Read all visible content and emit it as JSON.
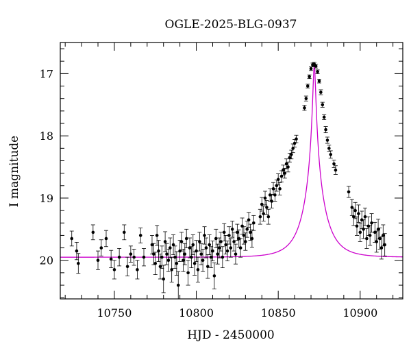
{
  "chart_data": {
    "type": "scatter",
    "title": "OGLE-2025-BLG-0937",
    "xlabel": "HJD - 2450000",
    "ylabel": "I magnitude",
    "xlim": [
      10717,
      10926
    ],
    "ylim": [
      20.62,
      16.5
    ],
    "y_inverted": true,
    "grid": false,
    "x_ticks": [
      10750,
      10800,
      10850,
      10900
    ],
    "y_ticks": [
      17,
      18,
      19,
      20
    ],
    "x_minor_step": 10,
    "y_minor_step": 0.2,
    "colors": {
      "points": "#000000",
      "model": "#cc00cc",
      "axes": "#000000"
    },
    "model": {
      "name": "",
      "baseline_mag": 19.95,
      "peak_time": 10872,
      "peak_mag": 16.85,
      "t_E": 12.5,
      "u0": 0.0585
    },
    "series": [
      {
        "type": "scatter_with_errorbars",
        "points": [
          [
            10724,
            19.65,
            0.12
          ],
          [
            10727,
            19.85,
            0.14
          ],
          [
            10728,
            20.05,
            0.16
          ],
          [
            10737,
            19.55,
            0.12
          ],
          [
            10740,
            20.0,
            0.15
          ],
          [
            10742,
            19.8,
            0.13
          ],
          [
            10745,
            19.65,
            0.13
          ],
          [
            10748,
            19.98,
            0.14
          ],
          [
            10750,
            20.15,
            0.15
          ],
          [
            10753,
            19.95,
            0.14
          ],
          [
            10756,
            19.55,
            0.12
          ],
          [
            10758,
            20.1,
            0.15
          ],
          [
            10760,
            19.9,
            0.13
          ],
          [
            10762,
            19.95,
            0.13
          ],
          [
            10764,
            20.15,
            0.15
          ],
          [
            10766,
            19.6,
            0.12
          ],
          [
            10768,
            19.95,
            0.14
          ],
          [
            10773,
            19.75,
            0.15
          ],
          [
            10774,
            19.9,
            0.17
          ],
          [
            10775,
            20.05,
            0.18
          ],
          [
            10776,
            19.6,
            0.16
          ],
          [
            10777,
            19.85,
            0.17
          ],
          [
            10778,
            20.1,
            0.2
          ],
          [
            10779,
            19.95,
            0.18
          ],
          [
            10780,
            20.3,
            0.22
          ],
          [
            10781,
            19.7,
            0.16
          ],
          [
            10782,
            19.9,
            0.17
          ],
          [
            10783,
            20.0,
            0.18
          ],
          [
            10784,
            19.8,
            0.16
          ],
          [
            10785,
            20.15,
            0.2
          ],
          [
            10786,
            19.75,
            0.16
          ],
          [
            10787,
            19.95,
            0.18
          ],
          [
            10788,
            20.05,
            0.19
          ],
          [
            10789,
            20.4,
            0.22
          ],
          [
            10790,
            19.85,
            0.17
          ],
          [
            10791,
            19.7,
            0.15
          ],
          [
            10792,
            20.0,
            0.18
          ],
          [
            10793,
            19.9,
            0.17
          ],
          [
            10794,
            19.65,
            0.15
          ],
          [
            10795,
            20.2,
            0.2
          ],
          [
            10796,
            19.8,
            0.16
          ],
          [
            10797,
            19.95,
            0.17
          ],
          [
            10798,
            19.75,
            0.16
          ],
          [
            10799,
            20.05,
            0.19
          ],
          [
            10800,
            19.85,
            0.17
          ],
          [
            10801,
            20.15,
            0.2
          ],
          [
            10802,
            19.7,
            0.15
          ],
          [
            10803,
            19.9,
            0.17
          ],
          [
            10804,
            20.0,
            0.18
          ],
          [
            10805,
            19.6,
            0.14
          ],
          [
            10806,
            19.8,
            0.16
          ],
          [
            10807,
            20.1,
            0.19
          ],
          [
            10808,
            19.75,
            0.16
          ],
          [
            10809,
            19.95,
            0.17
          ],
          [
            10810,
            19.85,
            0.16
          ],
          [
            10811,
            20.25,
            0.21
          ],
          [
            10812,
            19.65,
            0.15
          ],
          [
            10813,
            19.9,
            0.16
          ],
          [
            10814,
            19.8,
            0.16
          ],
          [
            10815,
            19.7,
            0.15
          ],
          [
            10816,
            19.95,
            0.17
          ],
          [
            10817,
            19.55,
            0.14
          ],
          [
            10818,
            19.75,
            0.15
          ],
          [
            10819,
            19.85,
            0.16
          ],
          [
            10820,
            19.6,
            0.14
          ],
          [
            10821,
            19.8,
            0.15
          ],
          [
            10822,
            19.5,
            0.13
          ],
          [
            10823,
            19.7,
            0.15
          ],
          [
            10824,
            19.9,
            0.16
          ],
          [
            10825,
            19.55,
            0.13
          ],
          [
            10826,
            19.65,
            0.14
          ],
          [
            10827,
            19.8,
            0.15
          ],
          [
            10828,
            19.45,
            0.13
          ],
          [
            10829,
            19.6,
            0.14
          ],
          [
            10830,
            19.7,
            0.14
          ],
          [
            10831,
            19.5,
            0.13
          ],
          [
            10832,
            19.35,
            0.12
          ],
          [
            10833,
            19.55,
            0.13
          ],
          [
            10834,
            19.65,
            0.14
          ],
          [
            10835,
            19.4,
            0.12
          ],
          [
            10839,
            19.3,
            0.12
          ],
          [
            10840,
            19.1,
            0.11
          ],
          [
            10841,
            19.25,
            0.12
          ],
          [
            10842,
            19.0,
            0.11
          ],
          [
            10843,
            19.15,
            0.11
          ],
          [
            10844,
            19.3,
            0.12
          ],
          [
            10845,
            18.95,
            0.1
          ],
          [
            10846,
            19.05,
            0.11
          ],
          [
            10847,
            18.85,
            0.1
          ],
          [
            10848,
            18.95,
            0.1
          ],
          [
            10849,
            18.8,
            0.09
          ],
          [
            10850,
            18.7,
            0.09
          ],
          [
            10851,
            18.85,
            0.1
          ],
          [
            10852,
            18.65,
            0.09
          ],
          [
            10853,
            18.55,
            0.08
          ],
          [
            10854,
            18.6,
            0.08
          ],
          [
            10855,
            18.45,
            0.08
          ],
          [
            10856,
            18.5,
            0.08
          ],
          [
            10857,
            18.35,
            0.07
          ],
          [
            10858,
            18.3,
            0.07
          ],
          [
            10859,
            18.2,
            0.07
          ],
          [
            10860,
            18.12,
            0.06
          ],
          [
            10861,
            18.05,
            0.06
          ],
          [
            10866,
            17.55,
            0.04
          ],
          [
            10867,
            17.4,
            0.04
          ],
          [
            10868,
            17.2,
            0.03
          ],
          [
            10869,
            17.05,
            0.03
          ],
          [
            10870,
            16.92,
            0.03
          ],
          [
            10871,
            16.86,
            0.03
          ],
          [
            10872,
            16.85,
            0.03
          ],
          [
            10873,
            16.88,
            0.03
          ],
          [
            10874,
            16.97,
            0.03
          ],
          [
            10875,
            17.12,
            0.03
          ],
          [
            10876,
            17.3,
            0.04
          ],
          [
            10877,
            17.5,
            0.04
          ],
          [
            10878,
            17.7,
            0.04
          ],
          [
            10879,
            17.9,
            0.05
          ],
          [
            10880,
            18.07,
            0.05
          ],
          [
            10881,
            18.2,
            0.05
          ],
          [
            10882,
            18.3,
            0.06
          ],
          [
            10884,
            18.45,
            0.06
          ],
          [
            10885,
            18.55,
            0.07
          ],
          [
            10893,
            18.9,
            0.09
          ],
          [
            10895,
            19.15,
            0.13
          ],
          [
            10896,
            19.3,
            0.14
          ],
          [
            10897,
            19.2,
            0.13
          ],
          [
            10898,
            19.45,
            0.15
          ],
          [
            10899,
            19.25,
            0.14
          ],
          [
            10900,
            19.55,
            0.15
          ],
          [
            10901,
            19.35,
            0.14
          ],
          [
            10902,
            19.5,
            0.15
          ],
          [
            10903,
            19.3,
            0.14
          ],
          [
            10904,
            19.65,
            0.16
          ],
          [
            10905,
            19.45,
            0.15
          ],
          [
            10906,
            19.6,
            0.16
          ],
          [
            10907,
            19.4,
            0.15
          ],
          [
            10909,
            19.55,
            0.16
          ],
          [
            10910,
            19.7,
            0.17
          ],
          [
            10911,
            19.5,
            0.16
          ],
          [
            10912,
            19.65,
            0.17
          ],
          [
            10913,
            19.8,
            0.18
          ],
          [
            10914,
            19.6,
            0.17
          ],
          [
            10915,
            19.75,
            0.18
          ]
        ]
      }
    ]
  }
}
